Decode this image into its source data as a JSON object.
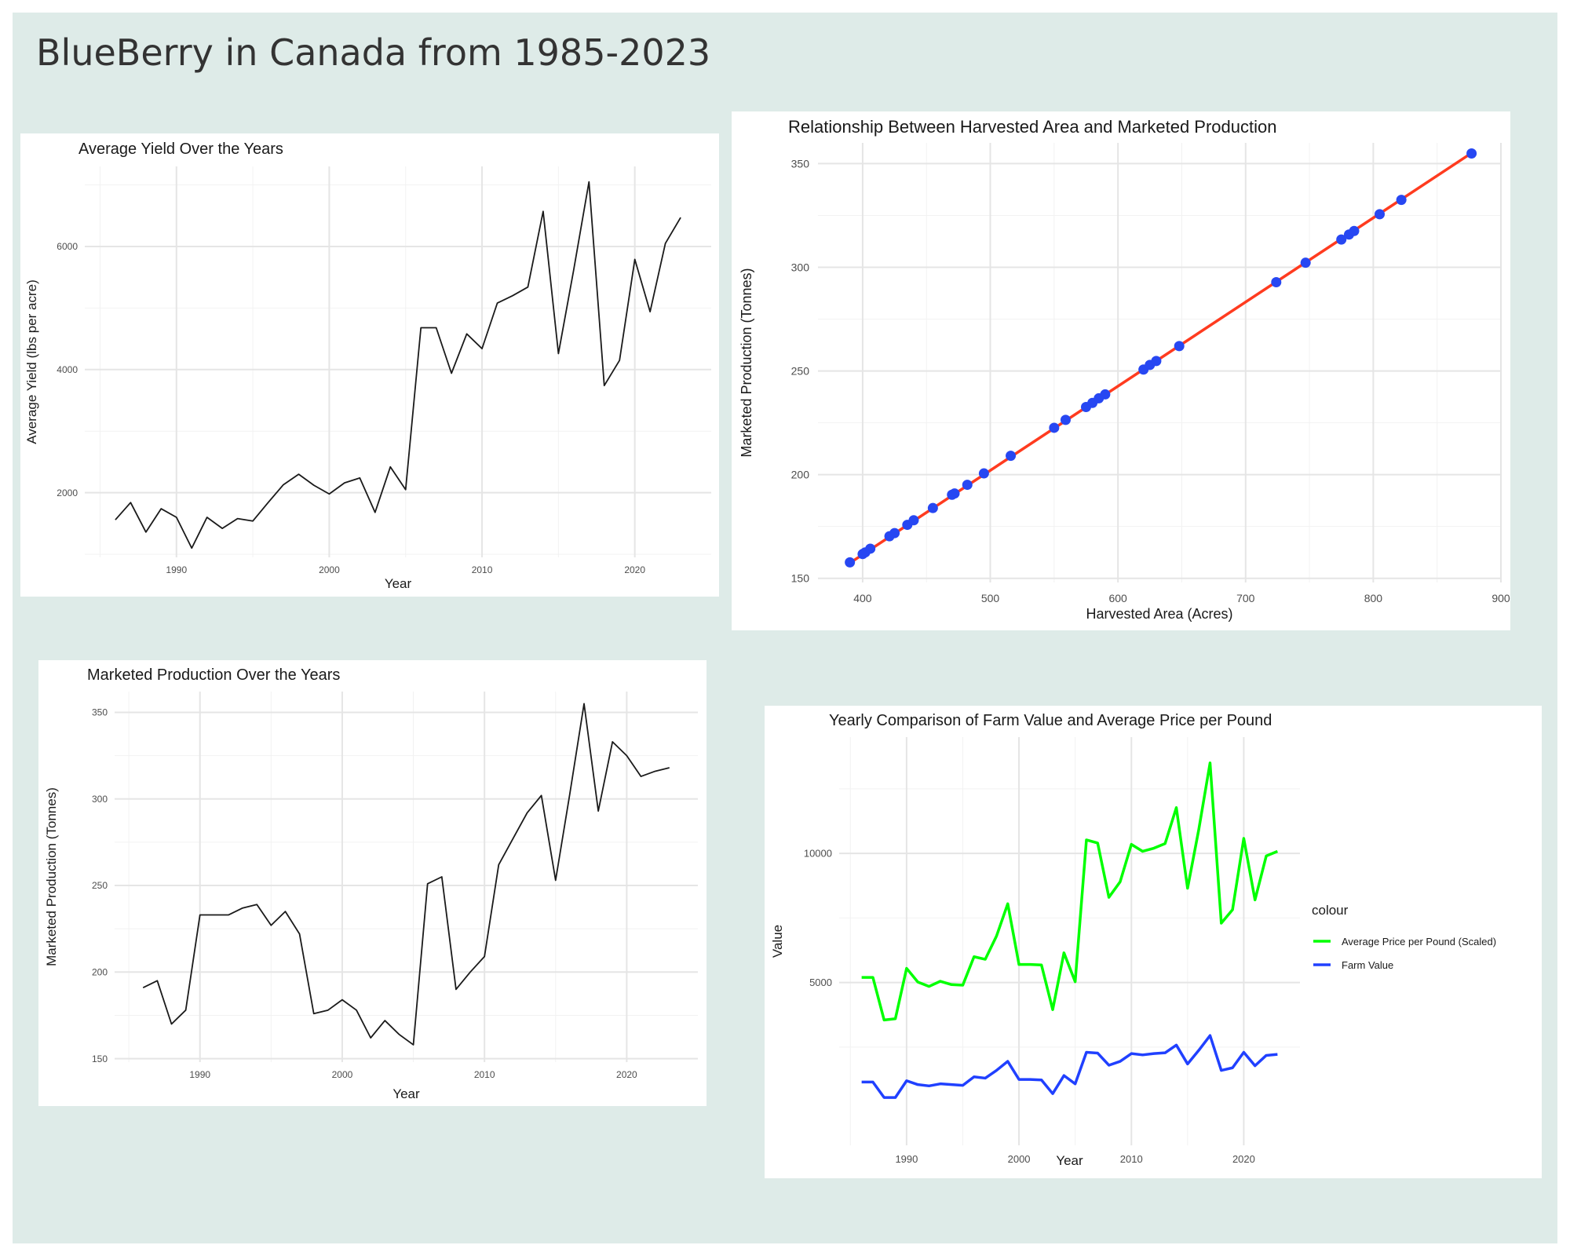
{
  "dashboard": {
    "title": "BlueBerry in Canada from 1985-2023"
  },
  "chart_data": [
    {
      "id": "yield",
      "type": "line",
      "title": "Average Yield Over the Years",
      "xlabel": "Year",
      "ylabel": "Average Yield (lbs per acre)",
      "xlim": [
        1984,
        2025
      ],
      "ylim": [
        950,
        7300
      ],
      "xticks": [
        1990,
        2000,
        2010,
        2020
      ],
      "yticks": [
        2000,
        4000,
        6000
      ],
      "grid": true,
      "line_color": "#1a1a1a",
      "x": [
        1986,
        1987,
        1988,
        1989,
        1990,
        1991,
        1992,
        1993,
        1994,
        1995,
        1996,
        1997,
        1998,
        1999,
        2000,
        2001,
        2002,
        2003,
        2004,
        2005,
        2006,
        2007,
        2008,
        2009,
        2010,
        2011,
        2012,
        2013,
        2014,
        2015,
        2016,
        2017,
        2018,
        2019,
        2020,
        2021,
        2022,
        2023
      ],
      "y": [
        1560,
        1840,
        1360,
        1740,
        1600,
        1100,
        1600,
        1420,
        1580,
        1540,
        1840,
        2130,
        2300,
        2120,
        1980,
        2160,
        2240,
        1680,
        2420,
        2050,
        4680,
        4680,
        3940,
        4580,
        4340,
        5080,
        5200,
        5340,
        6570,
        4260,
        5620,
        7050,
        3740,
        4150,
        5790,
        4940,
        6050,
        6470
      ]
    },
    {
      "id": "scatter",
      "type": "scatter",
      "title": "Relationship Between Harvested Area and Marketed Production",
      "xlabel": "Harvested Area (Acres)",
      "ylabel": "Marketed Production (Tonnes)",
      "xlim": [
        365,
        900
      ],
      "ylim": [
        148,
        360
      ],
      "xticks": [
        400,
        500,
        600,
        700,
        800,
        900
      ],
      "yticks": [
        150,
        200,
        250,
        300,
        350
      ],
      "grid": true,
      "point_color": "#2747f2",
      "fit_color": "#ff3b1f",
      "fit": {
        "x": [
          390,
          877
        ],
        "y": [
          157.4,
          355.1
        ]
      },
      "x": [
        390,
        400,
        402,
        406,
        421,
        425,
        435,
        440,
        455,
        470,
        472,
        482,
        495,
        516,
        550,
        559,
        575,
        580,
        585,
        590,
        620,
        625,
        630,
        648,
        724,
        747,
        775,
        781,
        785,
        805,
        822,
        877
      ],
      "y": [
        157.7,
        161.7,
        162.5,
        164.3,
        170.3,
        171.8,
        175.8,
        178.0,
        183.9,
        190.3,
        190.9,
        195.1,
        200.6,
        209.1,
        222.6,
        226.4,
        232.6,
        234.6,
        236.8,
        238.7,
        250.7,
        252.9,
        254.8,
        262.0,
        292.8,
        302.2,
        313.4,
        315.8,
        317.5,
        325.6,
        332.5,
        354.9
      ]
    },
    {
      "id": "production",
      "type": "line",
      "title": "Marketed Production Over the Years",
      "xlabel": "Year",
      "ylabel": "Marketed Production (Tonnes)",
      "xlim": [
        1984,
        2025
      ],
      "ylim": [
        148,
        362
      ],
      "xticks": [
        1990,
        2000,
        2010,
        2020
      ],
      "yticks": [
        150,
        200,
        250,
        300,
        350
      ],
      "grid": true,
      "line_color": "#1a1a1a",
      "x": [
        1986,
        1987,
        1988,
        1989,
        1990,
        1991,
        1992,
        1993,
        1994,
        1995,
        1996,
        1997,
        1998,
        1999,
        2000,
        2001,
        2002,
        2003,
        2004,
        2005,
        2006,
        2007,
        2008,
        2009,
        2010,
        2011,
        2012,
        2013,
        2014,
        2015,
        2016,
        2017,
        2018,
        2019,
        2020,
        2021,
        2022,
        2023
      ],
      "y": [
        191,
        195,
        170,
        178,
        233,
        233,
        233,
        237,
        239,
        227,
        235,
        222,
        176,
        178,
        184,
        178,
        162,
        172,
        164,
        158,
        251,
        255,
        190,
        200,
        209,
        262,
        277,
        292,
        302,
        253,
        303,
        355,
        293,
        333,
        325,
        313,
        316,
        318
      ]
    },
    {
      "id": "farmvalue",
      "type": "line",
      "title": "Yearly Comparison of Farm Value and Average Price per Pound",
      "xlabel": "Year",
      "ylabel": "Value",
      "xlim": [
        1984,
        2025
      ],
      "ylim": [
        -1300,
        14500
      ],
      "xticks": [
        1990,
        2000,
        2010,
        2020
      ],
      "yticks": [
        5000,
        10000
      ],
      "grid": true,
      "legend": {
        "title": "colour",
        "position": "right"
      },
      "x": [
        1986,
        1987,
        1988,
        1989,
        1990,
        1991,
        1992,
        1993,
        1994,
        1995,
        1996,
        1997,
        1998,
        1999,
        2000,
        2001,
        2002,
        2003,
        2004,
        2005,
        2006,
        2007,
        2008,
        2009,
        2010,
        2011,
        2012,
        2013,
        2014,
        2015,
        2016,
        2017,
        2018,
        2019,
        2020,
        2021,
        2022,
        2023
      ],
      "series": [
        {
          "name": "Average Price per Pound (Scaled)",
          "color": "#00ff00",
          "values": [
            5200,
            5200,
            3550,
            3600,
            5550,
            5020,
            4850,
            5050,
            4920,
            4900,
            6000,
            5900,
            6800,
            8050,
            5700,
            5700,
            5680,
            3950,
            6150,
            5030,
            10520,
            10400,
            8300,
            8900,
            10350,
            10080,
            10200,
            10380,
            11770,
            8650,
            10930,
            13500,
            7300,
            7820,
            10580,
            8200,
            9900,
            10080
          ]
        },
        {
          "name": "Farm Value",
          "color": "#2040ff",
          "values": [
            1150,
            1150,
            550,
            550,
            1200,
            1050,
            1000,
            1080,
            1050,
            1020,
            1350,
            1300,
            1600,
            1950,
            1250,
            1250,
            1230,
            700,
            1400,
            1080,
            2300,
            2270,
            1800,
            1950,
            2250,
            2200,
            2250,
            2280,
            2580,
            1850,
            2380,
            2950,
            1600,
            1700,
            2300,
            1780,
            2180,
            2220
          ]
        }
      ]
    }
  ]
}
